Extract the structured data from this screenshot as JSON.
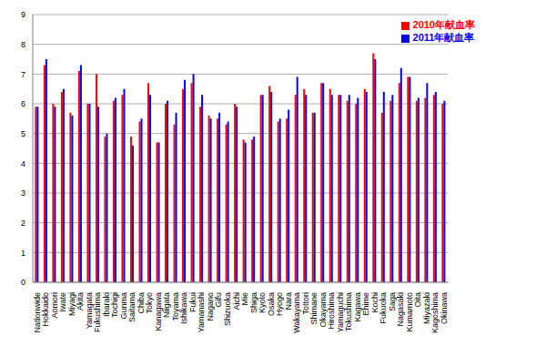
{
  "chart_data": {
    "type": "bar",
    "categories": [
      "Nationwide",
      "Hokkaido",
      "Aomori",
      "Iwate",
      "Miyagi",
      "Akita",
      "Yamagata",
      "Fukushima",
      "Ibaraki",
      "Tochigi",
      "Gunma",
      "Saitama",
      "Chiba",
      "Tokyo",
      "Kanagawa",
      "Niigata",
      "Toyama",
      "Ishikawa",
      "Fukui",
      "Yamanashi",
      "Nagano",
      "Gifu",
      "Shizuoka",
      "Aichi",
      "Mie",
      "Shiga",
      "Kyoto",
      "Osaka",
      "Hyogo",
      "Nara",
      "Wakayama",
      "Tottori",
      "Shimane",
      "Okayama",
      "Hiroshima",
      "Yamaguchi",
      "Tokushima",
      "Kagawa",
      "Ehime",
      "Kochi",
      "Fukuoka",
      "Saga",
      "Nagasaki",
      "Kumamoto",
      "Oita",
      "Miyazaki",
      "Kagoshima",
      "Okinawa"
    ],
    "series": [
      {
        "name": "2010年献血率",
        "color": "#ff0000",
        "values": [
          5.9,
          7.3,
          6.0,
          6.4,
          5.7,
          7.1,
          6.0,
          7.0,
          4.9,
          6.1,
          6.3,
          4.9,
          5.4,
          6.7,
          4.7,
          6.0,
          5.3,
          6.5,
          6.7,
          5.9,
          5.6,
          5.5,
          5.3,
          6.0,
          4.8,
          4.8,
          6.3,
          6.6,
          5.4,
          5.5,
          6.3,
          6.5,
          5.7,
          6.7,
          6.5,
          6.3,
          6.1,
          6.0,
          6.5,
          7.7,
          5.7,
          6.1,
          6.7,
          6.9,
          6.1,
          6.2,
          6.3,
          6.0
        ]
      },
      {
        "name": "2011年献血率",
        "color": "#0000ff",
        "values": [
          5.9,
          7.5,
          5.9,
          6.5,
          5.6,
          7.3,
          6.0,
          5.9,
          5.0,
          6.2,
          6.5,
          4.6,
          5.5,
          6.3,
          4.7,
          6.1,
          5.7,
          6.8,
          7.0,
          6.3,
          5.5,
          5.7,
          5.4,
          5.9,
          4.7,
          4.9,
          6.3,
          6.4,
          5.5,
          5.8,
          6.9,
          6.3,
          5.7,
          6.7,
          6.3,
          6.3,
          6.3,
          6.2,
          6.4,
          7.5,
          6.4,
          6.3,
          7.2,
          6.9,
          6.2,
          6.7,
          6.4,
          6.1
        ]
      }
    ],
    "ylim": [
      0,
      9
    ],
    "yticks": [
      0,
      1,
      2,
      3,
      4,
      5,
      6,
      7,
      8,
      9
    ],
    "grid": true,
    "legend": "upper right"
  }
}
